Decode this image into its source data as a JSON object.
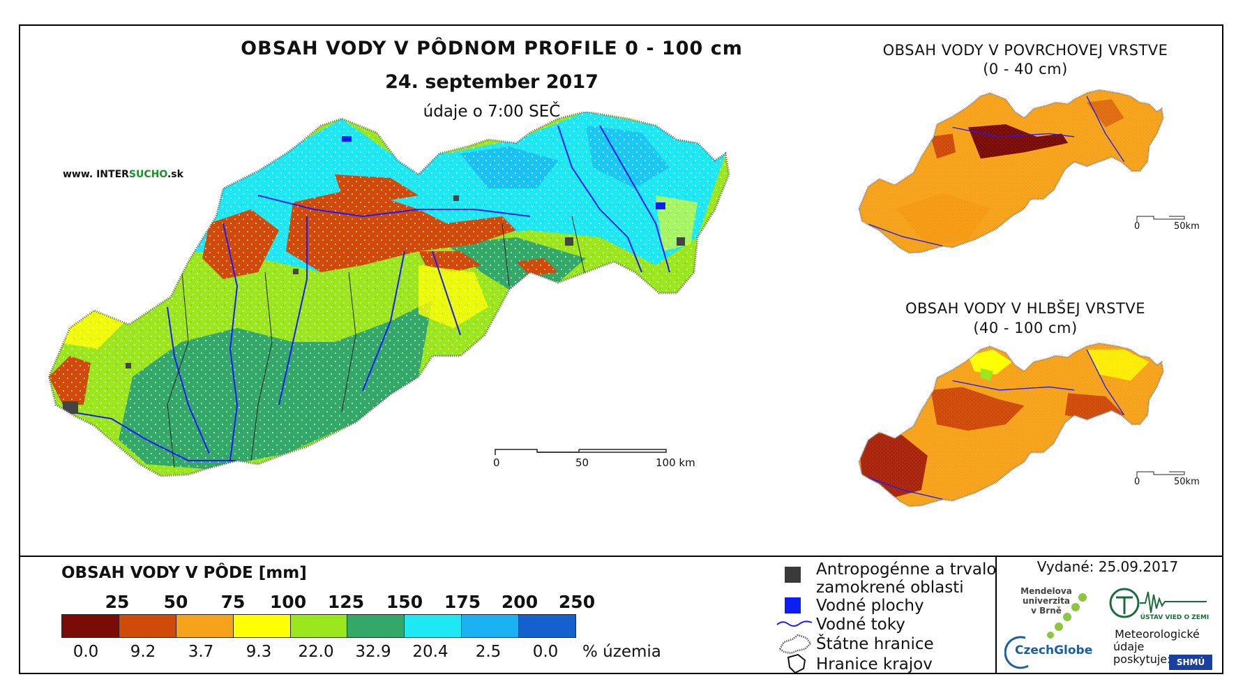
{
  "map": {
    "title": "OBSAH VODY V PÔDNOM PROFILE 0 - 100 cm",
    "date": "24. september 2017",
    "time_note": "údaje o 7:00 SEČ",
    "website_prefix": "www. INTER",
    "website_brand": "SUCHO",
    "website_suffix": ".sk",
    "scale": {
      "zero": "0",
      "mid": "50",
      "end": "100 km"
    }
  },
  "inset_surface": {
    "title_line1": "OBSAH VODY V POVRCHOVEJ VRSTVE",
    "title_line2": "(0 - 40 cm)",
    "scale_zero": "0",
    "scale_end": "50km"
  },
  "inset_deep": {
    "title_line1": "OBSAH VODY V HLBŠEJ VRSTVE",
    "title_line2": "(40 - 100 cm)",
    "scale_zero": "0",
    "scale_end": "50km"
  },
  "legend": {
    "title": "OBSAH VODY V PÔDE [mm]",
    "breaks": [
      "25",
      "50",
      "75",
      "100",
      "125",
      "150",
      "175",
      "200",
      "250"
    ],
    "colors": [
      "#7a0b06",
      "#d04a0a",
      "#f6a21a",
      "#ffff00",
      "#9be61c",
      "#34a868",
      "#1de8f4",
      "#1ab2f2",
      "#1560cf"
    ],
    "percent": [
      "0.0",
      "9.2",
      "3.7",
      "9.3",
      "22.0",
      "32.9",
      "20.4",
      "2.5",
      "0.0"
    ],
    "percent_unit": "% územia"
  },
  "symbols": {
    "anthropogenic_line1": "Antropogénne a trvalo",
    "anthropogenic_line2": "zamokrené oblasti",
    "water_bodies": "Vodné plochy",
    "rivers": "Vodné toky",
    "state_border": "Štátne hranice",
    "regions_border": "Hranice krajov"
  },
  "footer": {
    "issued": "Vydané: 25.09.2017",
    "mendel_line1": "Mendelova",
    "mendel_line2": "univerzita",
    "mendel_line3": "v Brně",
    "czechglobe": "CzechGlobe",
    "uvzz": "ÚSTAV VIED O ZEMI",
    "meteo_line1": "Meteorologické",
    "meteo_line2": "údaje",
    "meteo_line3": "poskytuje:",
    "shmu": "SHMÚ"
  }
}
